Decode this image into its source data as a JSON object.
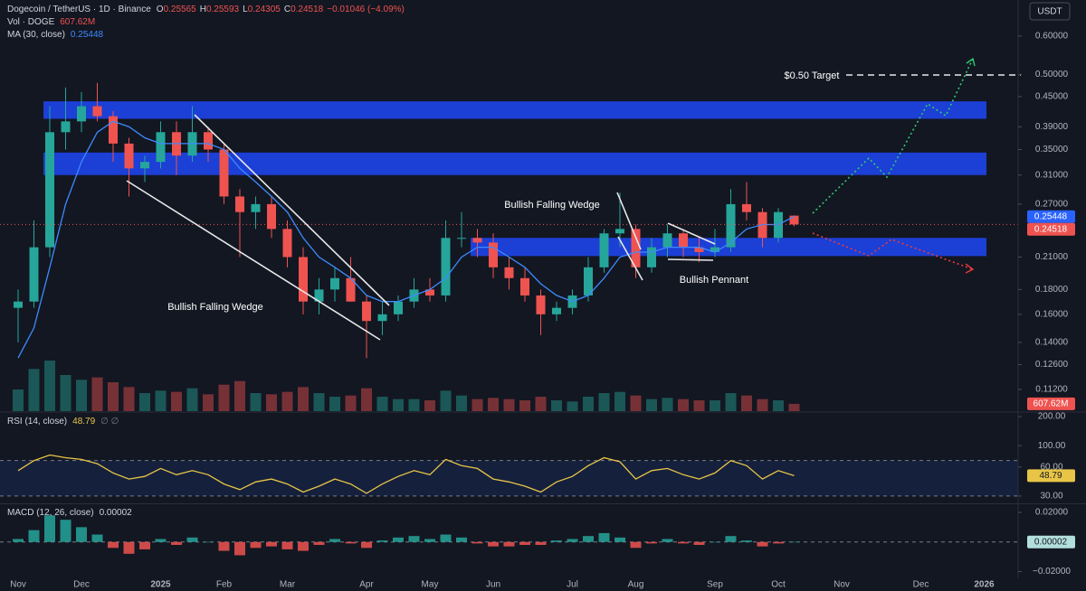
{
  "currency": "USDT",
  "chart_data": [
    {
      "type": "candlestick",
      "title": "Dogecoin / TetherUS · 1D · Binance",
      "ohlc_labels": [
        "O",
        "H",
        "L",
        "C"
      ],
      "change": "−0.01046 (−4.09%)",
      "categories": [
        "Nov",
        null,
        null,
        null,
        "Dec",
        null,
        null,
        null,
        null,
        "2025",
        null,
        null,
        null,
        "Feb",
        null,
        null,
        null,
        "Mar",
        null,
        null,
        null,
        null,
        "Apr",
        null,
        null,
        null,
        "May",
        null,
        null,
        null,
        "Jun",
        null,
        null,
        null,
        null,
        "Jul",
        null,
        null,
        null,
        "Aug",
        null,
        null,
        null,
        null,
        "Sep",
        null,
        null,
        null,
        "Oct",
        null,
        null,
        null,
        "Nov",
        null,
        null,
        null,
        null,
        "Dec",
        null,
        null,
        null,
        "2026",
        null
      ],
      "open": [
        0.165,
        0.17,
        0.22,
        0.38,
        0.4,
        0.43,
        0.41,
        0.36,
        0.32,
        0.33,
        0.38,
        0.34,
        0.38,
        0.35,
        0.28,
        0.26,
        0.27,
        0.24,
        0.21,
        0.17,
        0.18,
        0.19,
        0.17,
        0.155,
        0.16,
        0.17,
        0.18,
        0.175,
        0.23,
        0.23,
        0.225,
        0.2,
        0.19,
        0.175,
        0.16,
        0.165,
        0.175,
        0.2,
        0.235,
        0.24,
        0.2,
        0.22,
        0.235,
        0.22,
        0.215,
        0.22,
        0.27,
        0.26,
        0.23,
        0.25565,
        null,
        null,
        null,
        null,
        null,
        null,
        null,
        null,
        null,
        null,
        null,
        null,
        null
      ],
      "high": [
        0.18,
        0.25,
        0.43,
        0.47,
        0.46,
        0.48,
        0.42,
        0.37,
        0.34,
        0.4,
        0.4,
        0.43,
        0.39,
        0.36,
        0.29,
        0.28,
        0.28,
        0.25,
        0.22,
        0.19,
        0.2,
        0.21,
        0.175,
        0.17,
        0.175,
        0.19,
        0.19,
        0.25,
        0.26,
        0.24,
        0.235,
        0.21,
        0.2,
        0.18,
        0.17,
        0.18,
        0.21,
        0.24,
        0.285,
        0.245,
        0.23,
        0.245,
        0.24,
        0.23,
        0.24,
        0.29,
        0.3,
        0.265,
        0.265,
        0.25593,
        null,
        null,
        null,
        null,
        null,
        null,
        null,
        null,
        null,
        null,
        null,
        null,
        null
      ],
      "low": [
        0.14,
        0.165,
        0.21,
        0.35,
        0.38,
        0.4,
        0.33,
        0.28,
        0.3,
        0.32,
        0.31,
        0.33,
        0.33,
        0.27,
        0.21,
        0.24,
        0.23,
        0.2,
        0.16,
        0.16,
        0.17,
        0.17,
        0.13,
        0.145,
        0.155,
        0.165,
        0.17,
        0.17,
        0.22,
        0.21,
        0.19,
        0.18,
        0.17,
        0.145,
        0.155,
        0.16,
        0.17,
        0.195,
        0.22,
        0.19,
        0.195,
        0.21,
        0.21,
        0.205,
        0.21,
        0.215,
        0.25,
        0.22,
        0.225,
        0.24305,
        null,
        null,
        null,
        null,
        null,
        null,
        null,
        null,
        null,
        null,
        null,
        null,
        null
      ],
      "close": [
        0.17,
        0.22,
        0.38,
        0.4,
        0.43,
        0.41,
        0.36,
        0.32,
        0.33,
        0.38,
        0.34,
        0.38,
        0.35,
        0.28,
        0.26,
        0.27,
        0.24,
        0.21,
        0.17,
        0.18,
        0.19,
        0.17,
        0.155,
        0.16,
        0.17,
        0.18,
        0.175,
        0.23,
        0.23,
        0.225,
        0.2,
        0.19,
        0.175,
        0.16,
        0.165,
        0.175,
        0.2,
        0.235,
        0.24,
        0.2,
        0.22,
        0.235,
        0.22,
        0.215,
        0.22,
        0.27,
        0.26,
        0.23,
        0.26,
        0.24518,
        null,
        null,
        null,
        null,
        null,
        null,
        null,
        null,
        null,
        null,
        null,
        null,
        null
      ],
      "up_color": "#26a69a",
      "down_color": "#ef5350",
      "series": [
        {
          "name": "MA (30, close)",
          "color": "#3d8bfd",
          "values": [
            0.13,
            0.15,
            0.2,
            0.27,
            0.33,
            0.38,
            0.4,
            0.39,
            0.37,
            0.36,
            0.36,
            0.36,
            0.36,
            0.35,
            0.32,
            0.3,
            0.28,
            0.26,
            0.23,
            0.21,
            0.2,
            0.19,
            0.175,
            0.17,
            0.17,
            0.175,
            0.18,
            0.19,
            0.21,
            0.22,
            0.22,
            0.21,
            0.2,
            0.185,
            0.175,
            0.17,
            0.175,
            0.19,
            0.21,
            0.215,
            0.215,
            0.22,
            0.22,
            0.22,
            0.215,
            0.225,
            0.24,
            0.245,
            0.245,
            0.25448,
            null,
            null,
            null,
            null,
            null,
            null,
            null,
            null,
            null,
            null,
            null,
            null,
            null
          ]
        }
      ],
      "volume": {
        "name": "Vol · DOGE",
        "value_label_last": "607.62M",
        "lim": [
          0,
          4500000000
        ],
        "values": [
          1800000000,
          3500000000,
          4200000000,
          3000000000,
          2600000000,
          2800000000,
          2400000000,
          2000000000,
          1500000000,
          1700000000,
          1600000000,
          1900000000,
          1400000000,
          2200000000,
          2500000000,
          1500000000,
          1400000000,
          1600000000,
          2000000000,
          1500000000,
          1200000000,
          1300000000,
          1900000000,
          1200000000,
          1000000000,
          1000000000,
          900000000,
          1700000000,
          1300000000,
          1000000000,
          1100000000,
          1000000000,
          900000000,
          1200000000,
          900000000,
          800000000,
          1200000000,
          1500000000,
          1600000000,
          1300000000,
          1000000000,
          1100000000,
          1000000000,
          900000000,
          900000000,
          1500000000,
          1300000000,
          1000000000,
          900000000,
          607620000,
          null,
          null,
          null,
          null,
          null,
          null,
          null,
          null,
          null,
          null,
          null,
          null,
          null
        ]
      },
      "log_scale": true,
      "grid": false,
      "ylim": [
        0.101,
        0.712
      ],
      "yticks": [
        {
          "value": 0.6,
          "label": "0.60000"
        },
        {
          "value": 0.5,
          "label": "0.50000"
        },
        {
          "value": 0.45,
          "label": "0.45000"
        },
        {
          "value": 0.39,
          "label": "0.39000"
        },
        {
          "value": 0.35,
          "label": "0.35000"
        },
        {
          "value": 0.31,
          "label": "0.31000"
        },
        {
          "value": 0.27,
          "label": "0.27000"
        },
        {
          "value": 0.21,
          "label": "0.21000"
        },
        {
          "value": 0.18,
          "label": "0.18000"
        },
        {
          "value": 0.16,
          "label": "0.16000"
        },
        {
          "value": 0.14,
          "label": "0.14000"
        },
        {
          "value": 0.126,
          "label": "0.12600"
        },
        {
          "value": 0.112,
          "label": "0.11200"
        }
      ],
      "zone_color": "#1c3fd6",
      "zones": [
        {
          "low": 0.405,
          "high": 0.44
        },
        {
          "low": 0.31,
          "high": 0.345
        },
        {
          "low": 0.211,
          "high": 0.23
        }
      ],
      "annotations": [
        "$0.50 Target",
        "Bullish Falling Wedge",
        "Bullish Falling Wedge",
        "Bullish Pennant"
      ]
    },
    {
      "type": "line",
      "title": "RSI (14, close)",
      "color": "#e8c547",
      "log_scale": true,
      "ylim": [
        25.2,
        223
      ],
      "yticks": [
        {
          "value": 200,
          "label": "200.00"
        },
        {
          "value": 100,
          "label": "100.00"
        },
        {
          "value": 60,
          "label": "60.00"
        },
        {
          "value": 30,
          "label": "30.00"
        }
      ],
      "bands": [
        70,
        30
      ],
      "values": [
        55,
        70,
        80,
        75,
        72,
        65,
        52,
        45,
        48,
        58,
        50,
        55,
        50,
        40,
        35,
        42,
        45,
        40,
        33,
        38,
        45,
        40,
        32,
        40,
        48,
        55,
        50,
        72,
        62,
        58,
        45,
        42,
        38,
        33,
        42,
        48,
        62,
        75,
        68,
        45,
        55,
        58,
        50,
        45,
        52,
        70,
        62,
        45,
        55,
        48.79
      ]
    },
    {
      "type": "bar",
      "title": "MACD (12, 26, close)",
      "up_color": "#26a69a",
      "down_color": "#ef5350",
      "ylim": [
        -0.0246,
        0.0255
      ],
      "yticks": [
        {
          "value": 0.02,
          "label": "0.02000"
        },
        {
          "value": -0.02,
          "label": "−0.02000"
        }
      ],
      "values": [
        0.002,
        0.008,
        0.018,
        0.015,
        0.01,
        0.005,
        -0.004,
        -0.008,
        -0.005,
        0.002,
        -0.002,
        0.003,
        0.0,
        -0.006,
        -0.009,
        -0.004,
        -0.003,
        -0.005,
        -0.006,
        -0.002,
        0.002,
        -0.001,
        -0.004,
        0.001,
        0.003,
        0.004,
        0.002,
        0.005,
        0.003,
        -0.001,
        -0.003,
        -0.003,
        -0.002,
        -0.002,
        0.001,
        0.002,
        0.004,
        0.006,
        0.003,
        -0.004,
        -0.001,
        0.002,
        -0.001,
        -0.002,
        0.0,
        0.004,
        0.001,
        -0.003,
        -0.001,
        2e-05
      ]
    }
  ]
}
